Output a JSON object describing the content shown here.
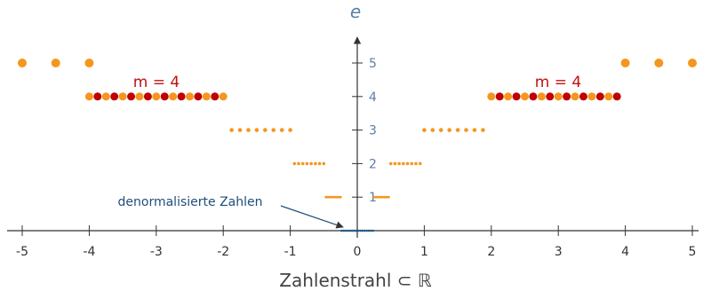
{
  "chart_data": {
    "type": "scatter",
    "xlabel": "Zahlenstrahl ⊂ ℝ",
    "ylabel": "e",
    "xlim": [
      -5,
      5
    ],
    "x_ticks": [
      "-5",
      "-4",
      "-3",
      "-2",
      "-1",
      "0",
      "1",
      "2",
      "3",
      "4",
      "5"
    ],
    "y_ticks": [
      "1",
      "2",
      "3",
      "4",
      "5"
    ],
    "annotations": {
      "m_label": "m = 4",
      "denormal_label": "denormalisierte Zahlen"
    },
    "colors": {
      "orange": "#f5961e",
      "red": "#c00000",
      "denormal": "#1f5a8a",
      "axis": "#333333",
      "e_axis": "#5a7fa8"
    },
    "series": [
      {
        "e": 5,
        "x": [
          -5,
          -4.5,
          -4,
          4,
          4.5,
          5
        ],
        "highlight": []
      },
      {
        "e": 4,
        "x": [
          -4,
          -3.875,
          -3.75,
          -3.625,
          -3.5,
          -3.375,
          -3.25,
          -3.125,
          -3,
          -2.875,
          -2.75,
          -2.625,
          -2.5,
          -2.375,
          -2.25,
          -2.125,
          -2,
          2,
          2.125,
          2.25,
          2.375,
          2.5,
          2.625,
          2.75,
          2.875,
          3,
          3.125,
          3.25,
          3.375,
          3.5,
          3.625,
          3.75,
          3.875
        ],
        "highlight": [
          -3.875,
          -3.625,
          -3.375,
          -3.125,
          -2.875,
          -2.625,
          -2.375,
          -2.125,
          2.125,
          2.375,
          2.625,
          2.875,
          3.125,
          3.375,
          3.625,
          3.875
        ]
      },
      {
        "e": 3,
        "x": [
          -1.875,
          -1.75,
          -1.625,
          -1.5,
          -1.375,
          -1.25,
          -1.125,
          -1,
          1,
          1.125,
          1.25,
          1.375,
          1.5,
          1.625,
          1.75,
          1.875
        ],
        "highlight": []
      },
      {
        "e": 2,
        "x": [
          -0.9375,
          -0.875,
          -0.8125,
          -0.75,
          -0.6875,
          -0.625,
          -0.5625,
          -0.5,
          0.5,
          0.5625,
          0.625,
          0.6875,
          0.75,
          0.8125,
          0.875,
          0.9375
        ],
        "highlight": []
      },
      {
        "e": 1,
        "x": [
          -0.46875,
          -0.4375,
          -0.40625,
          -0.375,
          -0.34375,
          -0.3125,
          -0.28125,
          -0.25,
          0.25,
          0.28125,
          0.3125,
          0.34375,
          0.375,
          0.40625,
          0.4375,
          0.46875
        ],
        "highlight": []
      },
      {
        "e": 0,
        "x": [
          -0.234375,
          -0.203125,
          -0.171875,
          -0.140625,
          -0.109375,
          -0.078125,
          -0.046875,
          -0.015625,
          0.015625,
          0.046875,
          0.078125,
          0.109375,
          0.140625,
          0.171875,
          0.203125,
          0.234375
        ],
        "highlight": [],
        "denormal": true
      }
    ]
  }
}
